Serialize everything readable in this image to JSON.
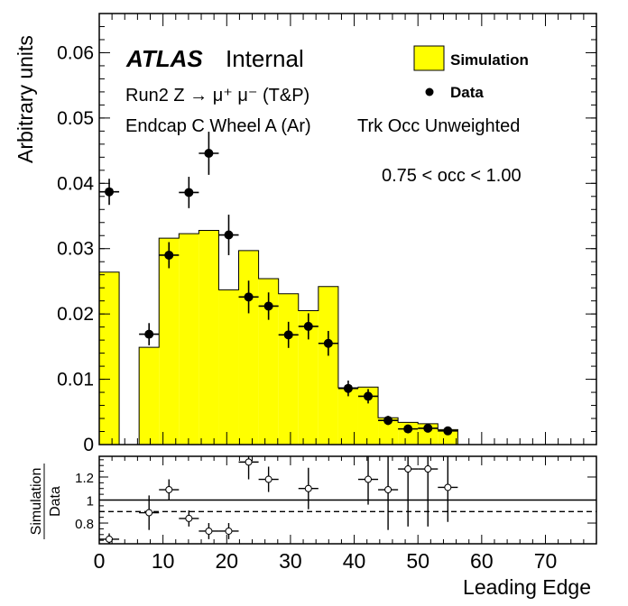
{
  "chart_data": {
    "type": "histogram",
    "main": {
      "ylabel": "Arbitrary units",
      "ylim": [
        0,
        0.066
      ],
      "yticks": [
        "0",
        "0.01",
        "0.02",
        "0.03",
        "0.04",
        "0.05",
        "0.06"
      ],
      "ytick_values": [
        0,
        0.01,
        0.02,
        0.03,
        0.04,
        0.05,
        0.06
      ],
      "simulation_bins": {
        "edges": [
          0,
          3.125,
          6.25,
          9.375,
          12.5,
          15.625,
          18.75,
          21.875,
          25,
          28.125,
          31.25,
          34.375,
          37.5,
          40.625,
          43.75,
          46.875,
          50,
          53.125,
          56.25
        ],
        "values": [
          0.0264,
          0.0,
          0.0149,
          0.0316,
          0.0323,
          0.0328,
          0.0237,
          0.0297,
          0.0254,
          0.0231,
          0.0205,
          0.0242,
          0.0087,
          0.0088,
          0.0041,
          0.0034,
          0.0032,
          0.0023
        ]
      },
      "data_points": {
        "x": [
          1.5625,
          7.8125,
          10.9375,
          14.0625,
          17.1875,
          20.3125,
          23.4375,
          26.5625,
          29.6875,
          32.8125,
          35.9375,
          39.0625,
          42.1875,
          45.3125,
          48.4375,
          51.5625,
          54.6875
        ],
        "y": [
          0.0387,
          0.0169,
          0.029,
          0.0386,
          0.0446,
          0.0321,
          0.0226,
          0.0212,
          0.0168,
          0.0181,
          0.0155,
          0.0086,
          0.0074,
          0.0037,
          0.0024,
          0.0025,
          0.0021
        ],
        "yerr": [
          0.002,
          0.0017,
          0.002,
          0.0024,
          0.0033,
          0.0031,
          0.0025,
          0.0021,
          0.002,
          0.002,
          0.0019,
          0.0012,
          0.0011,
          0.0007,
          0.0005,
          0.0005,
          0.0005
        ]
      }
    },
    "ratio": {
      "ylabel_num": "Simulation",
      "ylabel_den": "Data",
      "ylim": [
        0.62,
        1.38
      ],
      "yticks": [
        "0.8",
        "1",
        "1.2"
      ],
      "ytick_values": [
        0.8,
        1.0,
        1.2
      ],
      "reference_solid": 1.0,
      "reference_dashed": 0.9,
      "points": {
        "x": [
          1.5625,
          7.8125,
          10.9375,
          14.0625,
          17.1875,
          20.3125,
          23.4375,
          26.5625,
          32.8125,
          42.1875,
          45.3125,
          48.4375,
          51.5625,
          54.6875
        ],
        "y": [
          0.66,
          0.89,
          1.09,
          0.84,
          0.73,
          0.73,
          1.33,
          1.18,
          1.1,
          1.18,
          1.09,
          1.27,
          1.27,
          1.11
        ],
        "yerr": [
          0.05,
          0.15,
          0.09,
          0.07,
          0.07,
          0.07,
          0.15,
          0.11,
          0.18,
          0.22,
          0.35,
          0.5,
          0.5,
          0.3
        ]
      }
    },
    "xlabel": "Leading Edge",
    "xlim": [
      0,
      78
    ],
    "xticks": [
      "0",
      "10",
      "20",
      "30",
      "40",
      "50",
      "60",
      "70"
    ],
    "xtick_values": [
      0,
      10,
      20,
      30,
      40,
      50,
      60,
      70
    ]
  },
  "annotations": {
    "atlas": "ATLAS",
    "internal": "Internal",
    "line1": "Run2 Z → μ⁺ μ⁻ (T&P)",
    "line2": "Endcap C Wheel A (Ar)",
    "line3": "Trk Occ Unweighted",
    "occ_range": "0.75 < occ < 1.00"
  },
  "legend": {
    "simulation": "Simulation",
    "data": "Data"
  },
  "colors": {
    "simulation_fill": "#ffff00",
    "line": "#000000"
  }
}
